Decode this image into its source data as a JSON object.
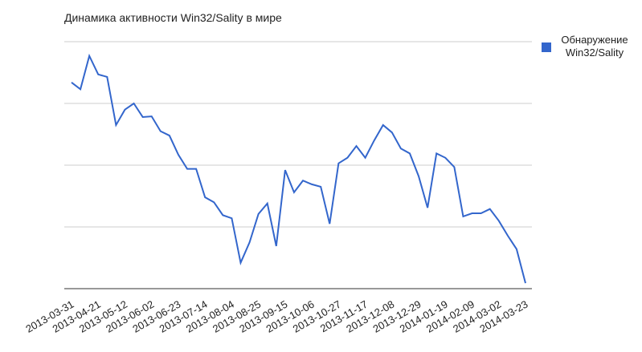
{
  "chart_data": {
    "type": "line",
    "title": "Динамика активности Win32/Sality в мире",
    "categories": [
      "2013-03-31",
      null,
      null,
      "2013-04-21",
      null,
      null,
      "2013-05-12",
      null,
      null,
      "2013-06-02",
      null,
      null,
      "2013-06-23",
      null,
      null,
      "2013-07-14",
      null,
      null,
      "2013-08-04",
      null,
      null,
      "2013-08-25",
      null,
      null,
      "2013-09-15",
      null,
      null,
      "2013-10-06",
      null,
      null,
      "2013-10-27",
      null,
      null,
      "2013-11-17",
      null,
      null,
      "2013-12-08",
      null,
      null,
      "2013-12-29",
      null,
      null,
      "2014-01-19",
      null,
      null,
      "2014-02-09",
      null,
      null,
      "2014-03-02",
      null,
      null,
      "2014-03-23"
    ],
    "series": [
      {
        "name": "Обнаружение Win32/Sality",
        "color": "#3366cc",
        "values": [
          3.34,
          3.23,
          3.77,
          3.47,
          3.43,
          2.65,
          2.9,
          3.0,
          2.78,
          2.79,
          2.55,
          2.48,
          2.17,
          1.94,
          1.94,
          1.48,
          1.4,
          1.19,
          1.14,
          0.42,
          0.75,
          1.21,
          1.38,
          0.69,
          1.92,
          1.56,
          1.75,
          1.69,
          1.65,
          1.05,
          2.03,
          2.12,
          2.31,
          2.12,
          2.4,
          2.65,
          2.53,
          2.27,
          2.19,
          1.82,
          1.31,
          2.19,
          2.12,
          1.97,
          1.17,
          1.22,
          1.22,
          1.29,
          1.1,
          0.86,
          0.64,
          0.09
        ]
      }
    ],
    "ylim": [
      0,
      4
    ],
    "grid": true
  }
}
